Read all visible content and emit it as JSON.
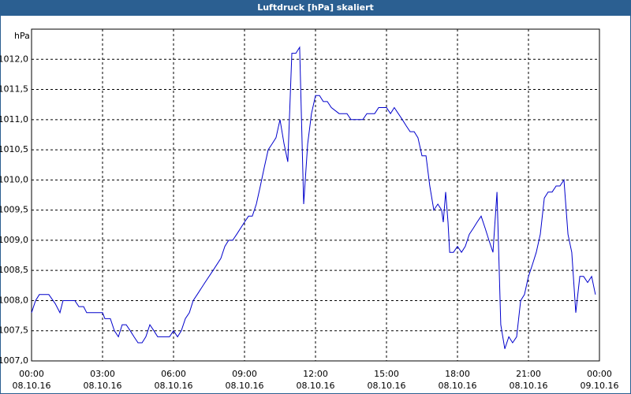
{
  "chart_data": {
    "type": "line",
    "title": "Luftdruck [hPa] skaliert",
    "ylabel": "hPa",
    "ylim": [
      1007,
      1012.5
    ],
    "yticks": [
      {
        "value": 1007,
        "label": "1007,0"
      },
      {
        "value": 1007.5,
        "label": "1007,5"
      },
      {
        "value": 1008,
        "label": "1008,0"
      },
      {
        "value": 1008.5,
        "label": "1008,5"
      },
      {
        "value": 1009,
        "label": "1009,0"
      },
      {
        "value": 1009.5,
        "label": "1009,5"
      },
      {
        "value": 1010,
        "label": "1010,0"
      },
      {
        "value": 1010.5,
        "label": "1010,5"
      },
      {
        "value": 1011,
        "label": "1011,0"
      },
      {
        "value": 1011.5,
        "label": "1011,5"
      },
      {
        "value": 1012,
        "label": "1012,0"
      }
    ],
    "xlim": [
      0,
      24
    ],
    "xticks": [
      {
        "value": 0,
        "label": "00:00",
        "date": "08.10.16"
      },
      {
        "value": 3,
        "label": "03:00",
        "date": "08.10.16"
      },
      {
        "value": 6,
        "label": "06:00",
        "date": "08.10.16"
      },
      {
        "value": 9,
        "label": "09:00",
        "date": "08.10.16"
      },
      {
        "value": 12,
        "label": "12:00",
        "date": "08.10.16"
      },
      {
        "value": 15,
        "label": "15:00",
        "date": "08.10.16"
      },
      {
        "value": 18,
        "label": "18:00",
        "date": "08.10.16"
      },
      {
        "value": 21,
        "label": "21:00",
        "date": "08.10.16"
      },
      {
        "value": 24,
        "label": "00:00",
        "date": "09.10.16"
      }
    ],
    "grid": true,
    "color": "#0000cc",
    "x": [
      0,
      0.17,
      0.33,
      0.73,
      1.0,
      1.2,
      1.33,
      1.83,
      2.0,
      2.2,
      2.33,
      3.0,
      3.1,
      3.33,
      3.5,
      3.67,
      3.83,
      4.0,
      4.17,
      4.33,
      4.5,
      4.67,
      4.83,
      5.0,
      5.17,
      5.33,
      5.83,
      6.0,
      6.17,
      6.33,
      6.5,
      6.67,
      6.83,
      7.0,
      7.33,
      7.67,
      8.0,
      8.17,
      8.33,
      8.5,
      8.67,
      9.0,
      9.17,
      9.33,
      9.5,
      9.67,
      9.83,
      10.0,
      10.17,
      10.33,
      10.5,
      10.67,
      10.83,
      11.0,
      11.17,
      11.33,
      11.5,
      11.67,
      11.83,
      12.0,
      12.17,
      12.33,
      12.5,
      12.67,
      13.0,
      13.33,
      13.5,
      14.0,
      14.17,
      14.5,
      14.67,
      15.0,
      15.17,
      15.33,
      15.5,
      15.67,
      15.83,
      16.0,
      16.17,
      16.33,
      16.5,
      16.67,
      16.83,
      17.0,
      17.17,
      17.33,
      17.4,
      17.5,
      17.6,
      17.67,
      17.83,
      18.0,
      18.17,
      18.33,
      18.5,
      18.67,
      18.83,
      19.0,
      19.17,
      19.33,
      19.5,
      19.67,
      19.83,
      20.0,
      20.17,
      20.33,
      20.5,
      20.67,
      20.83,
      21.0,
      21.17,
      21.33,
      21.5,
      21.67,
      21.83,
      22.0,
      22.17,
      22.33,
      22.5,
      22.67,
      22.83,
      23.0,
      23.17,
      23.33,
      23.5,
      23.67,
      23.83
    ],
    "values": [
      1007.8,
      1008.0,
      1008.1,
      1008.1,
      1007.95,
      1007.8,
      1008.0,
      1008.0,
      1007.9,
      1007.9,
      1007.8,
      1007.8,
      1007.7,
      1007.7,
      1007.5,
      1007.4,
      1007.6,
      1007.6,
      1007.5,
      1007.4,
      1007.3,
      1007.3,
      1007.4,
      1007.6,
      1007.5,
      1007.4,
      1007.4,
      1007.5,
      1007.4,
      1007.5,
      1007.7,
      1007.8,
      1008.0,
      1008.1,
      1008.3,
      1008.5,
      1008.7,
      1008.9,
      1009.0,
      1009.0,
      1009.1,
      1009.3,
      1009.4,
      1009.4,
      1009.6,
      1009.9,
      1010.2,
      1010.5,
      1010.6,
      1010.7,
      1011.0,
      1010.6,
      1010.3,
      1012.1,
      1012.1,
      1012.2,
      1009.6,
      1010.6,
      1011.1,
      1011.4,
      1011.4,
      1011.3,
      1011.3,
      1011.2,
      1011.1,
      1011.1,
      1011.0,
      1011.0,
      1011.1,
      1011.1,
      1011.2,
      1011.2,
      1011.1,
      1011.2,
      1011.1,
      1011.0,
      1010.9,
      1010.8,
      1010.8,
      1010.7,
      1010.4,
      1010.4,
      1009.9,
      1009.5,
      1009.6,
      1009.5,
      1009.3,
      1009.8,
      1009.3,
      1008.8,
      1008.8,
      1008.9,
      1008.8,
      1008.9,
      1009.1,
      1009.2,
      1009.3,
      1009.4,
      1009.2,
      1009.0,
      1008.8,
      1009.8,
      1007.6,
      1007.2,
      1007.4,
      1007.3,
      1007.4,
      1008.0,
      1008.1,
      1008.4,
      1008.6,
      1008.8,
      1009.1,
      1009.7,
      1009.8,
      1009.8,
      1009.9,
      1009.9,
      1010.0,
      1009.1,
      1008.8,
      1007.8,
      1008.4,
      1008.4,
      1008.3,
      1008.4,
      1008.1
    ]
  }
}
